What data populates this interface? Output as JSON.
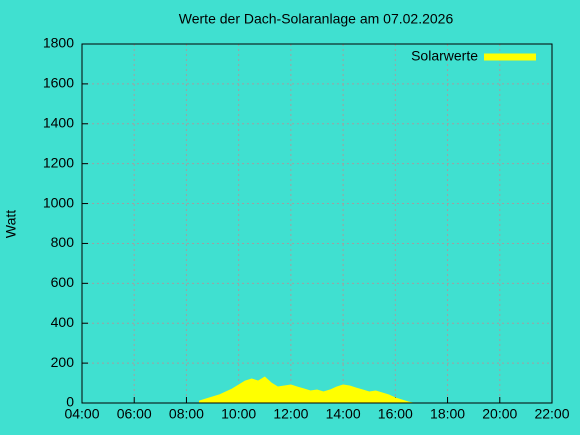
{
  "chart_data": {
    "type": "area",
    "title": "Werte der Dach-Solaranlage am 07.02.2026",
    "y_label": "Watt",
    "x": [
      "08:30",
      "08:45",
      "09:00",
      "09:15",
      "09:30",
      "09:45",
      "10:00",
      "10:15",
      "10:30",
      "10:45",
      "11:00",
      "11:15",
      "11:30",
      "11:45",
      "12:00",
      "12:15",
      "12:30",
      "12:45",
      "13:00",
      "13:15",
      "13:30",
      "13:45",
      "14:00",
      "14:15",
      "14:30",
      "14:45",
      "15:00",
      "15:15",
      "15:30",
      "15:45",
      "16:00",
      "16:15",
      "16:30",
      "16:40"
    ],
    "series": [
      {
        "name": "Solarwerte",
        "color": "#ffff00",
        "values": [
          10,
          20,
          30,
          40,
          55,
          70,
          90,
          110,
          120,
          110,
          130,
          100,
          80,
          85,
          90,
          80,
          70,
          60,
          65,
          55,
          65,
          80,
          90,
          85,
          75,
          65,
          55,
          60,
          50,
          40,
          25,
          15,
          5,
          0
        ]
      }
    ],
    "xlim": [
      "04:00",
      "22:00"
    ],
    "xticks": [
      "04:00",
      "06:00",
      "08:00",
      "10:00",
      "12:00",
      "14:00",
      "16:00",
      "18:00",
      "20:00",
      "22:00"
    ],
    "ylim": [
      0,
      1800
    ],
    "yticks": [
      0,
      200,
      400,
      600,
      800,
      1000,
      1200,
      1400,
      1600,
      1800
    ],
    "grid": true,
    "legend": "top-right",
    "background": "#40e0d0"
  }
}
